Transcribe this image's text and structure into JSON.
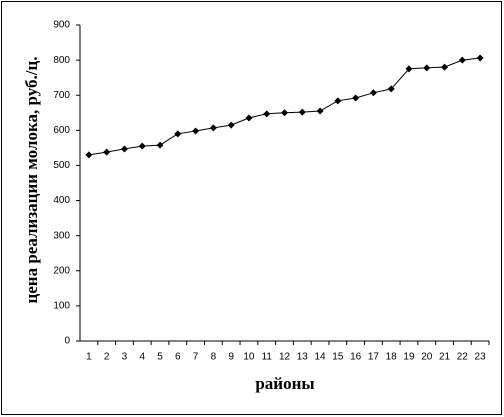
{
  "chart_data": {
    "type": "line",
    "x_label": "районы",
    "y_label": "цена реализации молока, руб./ц.",
    "categories": [
      "1",
      "2",
      "3",
      "4",
      "5",
      "6",
      "7",
      "8",
      "9",
      "10",
      "11",
      "12",
      "13",
      "14",
      "15",
      "16",
      "17",
      "18",
      "19",
      "20",
      "21",
      "22",
      "23"
    ],
    "values": [
      530,
      538,
      547,
      555,
      558,
      590,
      598,
      607,
      615,
      635,
      647,
      650,
      652,
      655,
      684,
      692,
      707,
      718,
      775,
      778,
      780,
      800,
      806
    ],
    "color": "#000000",
    "ylim": [
      0,
      900
    ],
    "yticks": [
      0,
      100,
      200,
      300,
      400,
      500,
      600,
      700,
      800,
      900
    ],
    "grid": false
  }
}
